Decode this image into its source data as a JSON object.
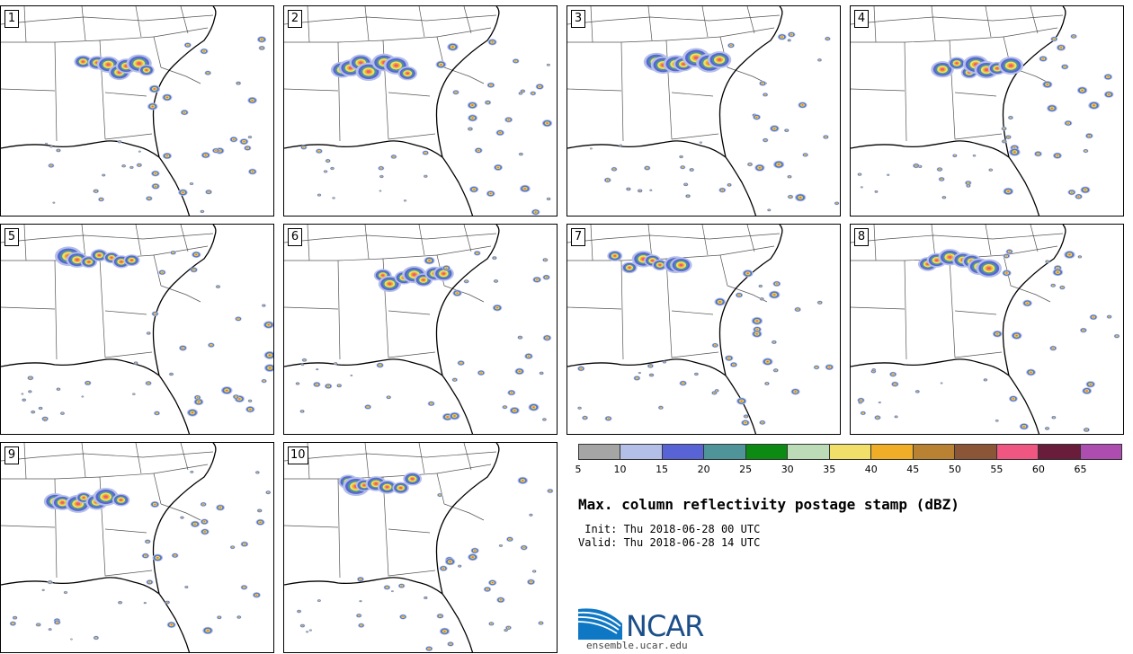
{
  "panels": [
    {
      "label": "1",
      "seed": 11
    },
    {
      "label": "2",
      "seed": 23
    },
    {
      "label": "3",
      "seed": 37
    },
    {
      "label": "4",
      "seed": 41
    },
    {
      "label": "5",
      "seed": 53
    },
    {
      "label": "6",
      "seed": 67
    },
    {
      "label": "7",
      "seed": 71
    },
    {
      "label": "8",
      "seed": 83
    },
    {
      "label": "9",
      "seed": 97
    },
    {
      "label": "10",
      "seed": 101
    }
  ],
  "colorbar": {
    "ticks": [
      "5",
      "10",
      "15",
      "20",
      "25",
      "30",
      "35",
      "40",
      "45",
      "50",
      "55",
      "60",
      "65"
    ],
    "colors": [
      "#a5a5a5",
      "#b4bfe8",
      "#5863d6",
      "#4e9498",
      "#0c8a13",
      "#bcdcb8",
      "#f0e06a",
      "#f0ae28",
      "#b98233",
      "#8b5638",
      "#ef5782",
      "#6a1d3a",
      "#ad4db0"
    ]
  },
  "title": "Max. column reflectivity postage stamp (dBZ)",
  "init_line": " Init: Thu 2018-06-28 00 UTC",
  "valid_line": "Valid: Thu 2018-06-28 14 UTC",
  "logo": {
    "text": "NCAR",
    "url": "ensemble.ucar.edu",
    "color": "#1c4f8a",
    "accent": "#0f78c4"
  }
}
